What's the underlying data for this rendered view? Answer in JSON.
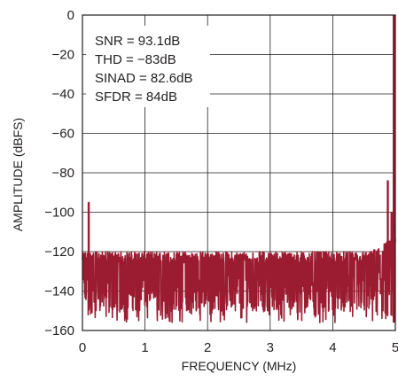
{
  "chart_data": {
    "type": "line",
    "xlabel": "FREQUENCY (MHz)",
    "ylabel": "AMPLITUDE (dBFS)",
    "xlim": [
      0,
      5
    ],
    "ylim": [
      -160,
      0
    ],
    "xticks": [
      0,
      1,
      2,
      3,
      4,
      5
    ],
    "xtick_labels": [
      "0",
      "1",
      "2",
      "3",
      "4",
      "5"
    ],
    "yticks": [
      0,
      -20,
      -40,
      -60,
      -80,
      -100,
      -120,
      -140,
      -160
    ],
    "ytick_labels": [
      "0",
      "−20",
      "−40",
      "−60",
      "−80",
      "−100",
      "−120",
      "−140",
      "−160"
    ],
    "grid": true,
    "annotations": [
      "SNR = 93.1dB",
      "THD = −83dB",
      "SINAD = 82.6dB",
      "SFDR = 84dB"
    ],
    "series": [
      {
        "color": "#9b1b30",
        "noise_floor": {
          "top_db": -122,
          "typical_db": -140,
          "bottom_db": -156
        },
        "spurs": [
          {
            "x": 0.1,
            "y": -95
          },
          {
            "x": 4.88,
            "y": -84
          },
          {
            "x": 4.94,
            "y": -100
          }
        ],
        "fundamental": {
          "x": 5.0,
          "y": 0
        }
      }
    ]
  }
}
